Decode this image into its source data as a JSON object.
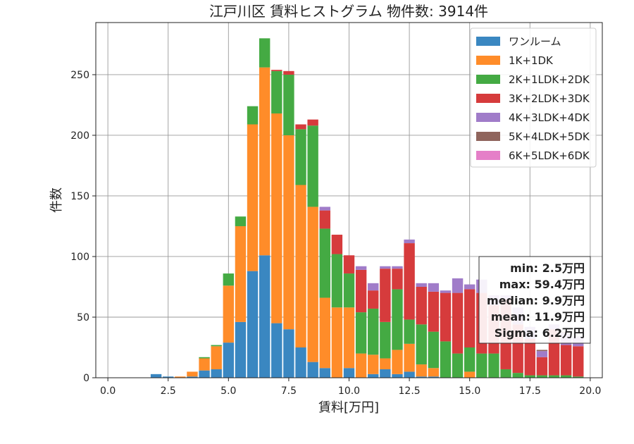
{
  "chart_data": {
    "type": "bar",
    "stacked": true,
    "title": "江戸川区 賃料ヒストグラム  物件数: 3914件",
    "xlabel": "賃料[万円]",
    "ylabel": "件数",
    "xlim": [
      -0.5,
      20.5
    ],
    "ylim": [
      0,
      293
    ],
    "xticks": [
      0,
      2.5,
      5,
      7.5,
      10,
      12.5,
      15,
      17.5,
      20
    ],
    "xtick_labels": [
      "0.0",
      "2.5",
      "5.0",
      "7.5",
      "10.0",
      "12.5",
      "15.0",
      "17.5",
      "20.0"
    ],
    "yticks": [
      0,
      50,
      100,
      150,
      200,
      250
    ],
    "ytick_labels": [
      "0",
      "50",
      "100",
      "150",
      "200",
      "250"
    ],
    "grid": true,
    "legend_position": "top-right",
    "bin_width": 0.5,
    "x": [
      2.0,
      2.5,
      3.0,
      3.5,
      4.0,
      4.5,
      5.0,
      5.5,
      6.0,
      6.5,
      7.0,
      7.5,
      8.0,
      8.5,
      9.0,
      9.5,
      10.0,
      10.5,
      11.0,
      11.5,
      12.0,
      12.5,
      13.0,
      13.5,
      14.0,
      14.5,
      15.0,
      15.5,
      16.0,
      16.5,
      17.0,
      17.5,
      18.0,
      18.5,
      19.0,
      19.5
    ],
    "series": [
      {
        "name": "ワンルーム",
        "color": "#3a87c1",
        "values": [
          3,
          1,
          0,
          1,
          6,
          7,
          29,
          46,
          88,
          101,
          45,
          40,
          25,
          13,
          8,
          0,
          8,
          0,
          3,
          7,
          3,
          5,
          1,
          1,
          0,
          0,
          0,
          0,
          0,
          0,
          0,
          0,
          0,
          0,
          0,
          0
        ]
      },
      {
        "name": "1K+1DK",
        "color": "#ff8c29",
        "values": [
          0,
          0,
          1,
          4,
          10,
          19,
          47,
          79,
          121,
          155,
          173,
          160,
          134,
          128,
          58,
          58,
          50,
          20,
          16,
          9,
          20,
          23,
          10,
          7,
          0,
          0,
          5,
          0,
          0,
          0,
          0,
          0,
          0,
          0,
          0,
          0
        ]
      },
      {
        "name": "2K+1LDK+2DK",
        "color": "#44aa43",
        "values": [
          0,
          0,
          0,
          0,
          1,
          1,
          10,
          8,
          15,
          24,
          35,
          50,
          46,
          67,
          57,
          44,
          28,
          34,
          38,
          30,
          50,
          20,
          33,
          30,
          30,
          20,
          20,
          20,
          20,
          7,
          4,
          2,
          2,
          2,
          2,
          1
        ]
      },
      {
        "name": "3K+2LDK+3DK",
        "color": "#d63b3c",
        "values": [
          0,
          0,
          0,
          0,
          0,
          0,
          0,
          0,
          0,
          0,
          1,
          3,
          4,
          5,
          15,
          16,
          15,
          35,
          15,
          44,
          17,
          63,
          31,
          33,
          40,
          50,
          48,
          50,
          40,
          58,
          40,
          30,
          15,
          38,
          25,
          25
        ]
      },
      {
        "name": "4K+3LDK+4DK",
        "color": "#a07cc9",
        "values": [
          0,
          0,
          0,
          0,
          0,
          0,
          0,
          0,
          0,
          0,
          0,
          0,
          0,
          0,
          3,
          0,
          0,
          3,
          6,
          2,
          2,
          3,
          3,
          7,
          2,
          12,
          4,
          11,
          8,
          3,
          14,
          10,
          5,
          4,
          10,
          8
        ]
      },
      {
        "name": "5K+4LDK+5DK",
        "color": "#8f645c",
        "values": [
          0,
          0,
          0,
          0,
          0,
          0,
          0,
          0,
          0,
          0,
          0,
          0,
          0,
          0,
          0,
          0,
          0,
          0,
          0,
          0,
          0,
          0,
          0,
          0,
          0,
          0,
          0,
          0,
          0,
          0,
          0,
          0,
          1,
          0,
          1,
          0
        ]
      },
      {
        "name": "6K+5LDK+6DK",
        "color": "#e57fc8",
        "values": [
          0,
          0,
          0,
          0,
          0,
          0,
          0,
          0,
          0,
          0,
          0,
          0,
          0,
          0,
          0,
          0,
          0,
          0,
          0,
          0,
          0,
          0,
          0,
          0,
          0,
          0,
          0,
          0,
          0,
          0,
          0,
          0,
          0,
          0,
          0,
          0
        ]
      }
    ],
    "stats": [
      "min: 2.5万円",
      "max: 59.4万円",
      "median: 9.9万円",
      "mean: 11.9万円",
      "Sigma: 6.2万円"
    ]
  }
}
